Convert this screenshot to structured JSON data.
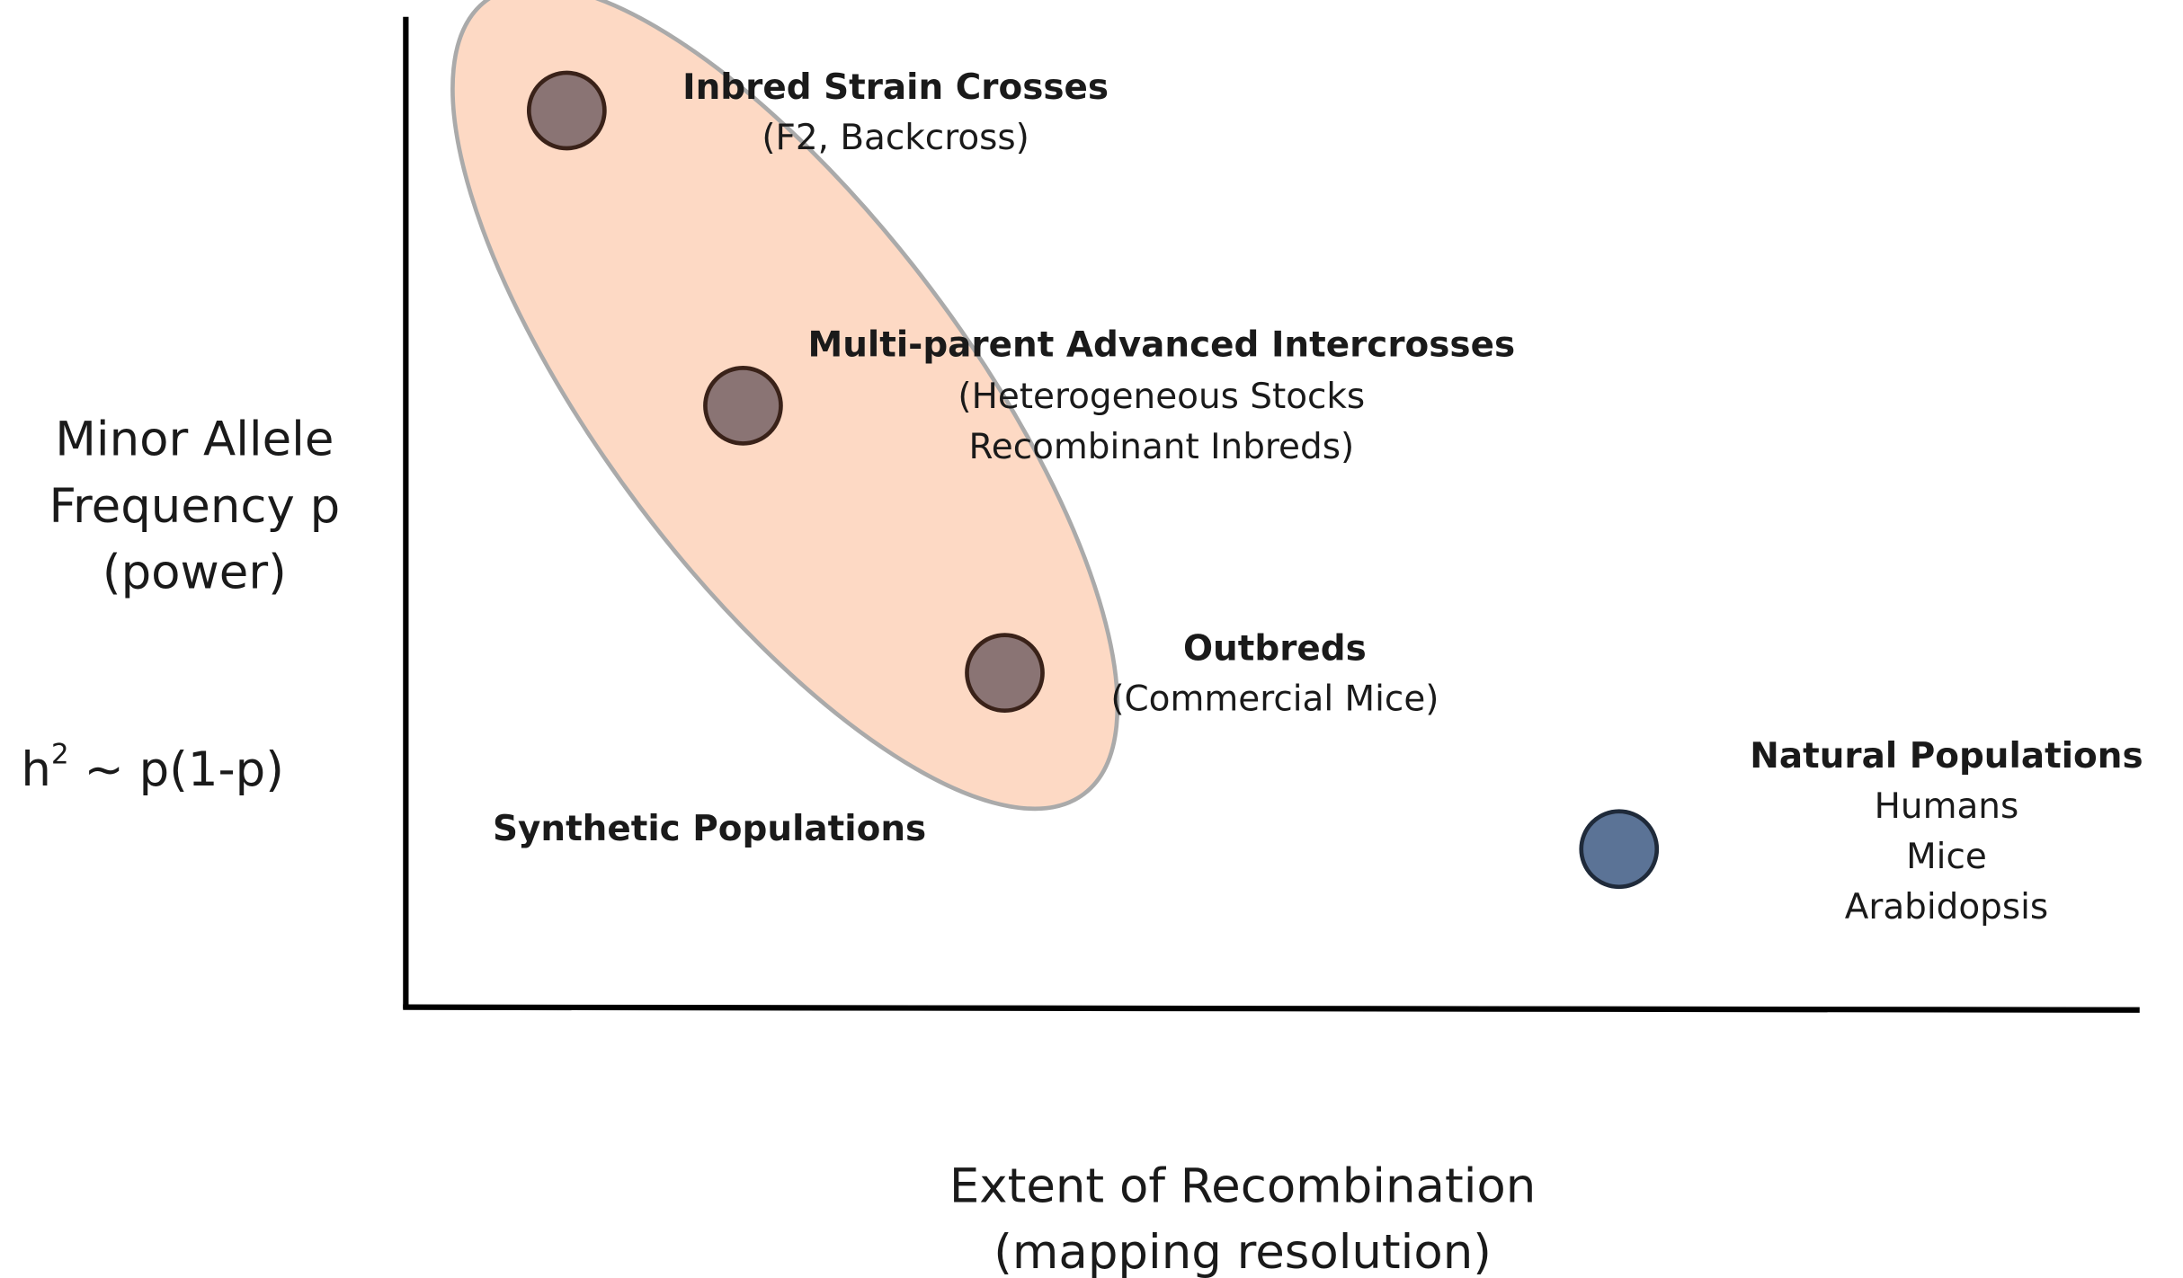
{
  "y_axis_label": {
    "lines": [
      "Minor Allele",
      "Frequency p",
      "(power)"
    ]
  },
  "formula": {
    "base": "h",
    "superscript": "2",
    "rest": " ~ p(1-p)"
  },
  "x_axis_label": {
    "lines": [
      "Extent of Recombination",
      "(mapping resolution)"
    ]
  },
  "nodes": [
    {
      "title": "Inbred Strain Crosses",
      "lines": [
        "(F2, Backcross)"
      ]
    },
    {
      "title": "Multi-parent Advanced Intercrosses",
      "lines": [
        "(Heterogeneous Stocks",
        "Recombinant Inbreds)"
      ]
    },
    {
      "title": "Outbreds",
      "lines": [
        "(Commercial Mice)"
      ]
    },
    {
      "title": "Natural Populations",
      "lines": [
        "Humans",
        "Mice",
        "Arabidopsis"
      ]
    }
  ],
  "group_label": "Synthetic Populations"
}
